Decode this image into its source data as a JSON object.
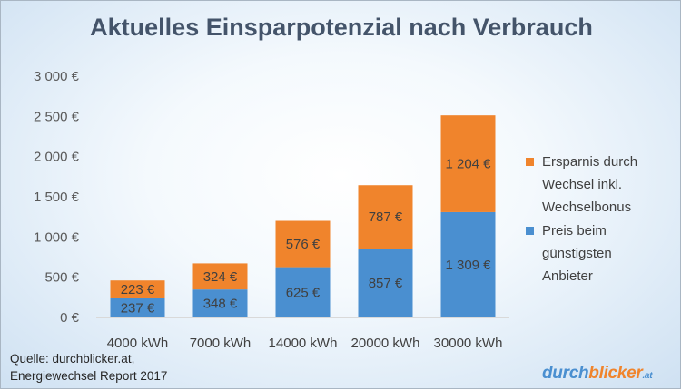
{
  "chart_data": {
    "type": "bar",
    "stacked": true,
    "title": "Aktuelles Einsparpotenzial nach Verbrauch",
    "categories": [
      "4000 kWh",
      "7000 kWh",
      "14000 kWh",
      "20000 kWh",
      "30000 kWh"
    ],
    "series": [
      {
        "name": "Preis beim günstigsten Anbieter",
        "color": "#4a8fd0",
        "values": [
          237,
          348,
          625,
          857,
          1309
        ],
        "labels": [
          "237 €",
          "348 €",
          "625 €",
          "857 €",
          "1 309 €"
        ]
      },
      {
        "name": "Ersparnis durch Wechsel inkl. Wechselbonus",
        "color": "#f0842c",
        "values": [
          223,
          324,
          576,
          787,
          1204
        ],
        "labels": [
          "223 €",
          "324 €",
          "576 €",
          "787 €",
          "1 204 €"
        ]
      }
    ],
    "ylim": [
      0,
      3000
    ],
    "yticks": [
      0,
      500,
      1000,
      1500,
      2000,
      2500,
      3000
    ],
    "ytick_labels": [
      "0 €",
      "500 €",
      "1 000 €",
      "1 500 €",
      "2 000 €",
      "2 500 €",
      "3 000 €"
    ],
    "grid": false,
    "legend_position": "right",
    "legend": [
      {
        "lines": [
          "Ersparnis durch",
          "Wechsel inkl.",
          "Wechselbonus"
        ],
        "color": "#f0842c"
      },
      {
        "lines": [
          "Preis beim",
          "günstigsten",
          "Anbieter"
        ],
        "color": "#4a8fd0"
      }
    ]
  },
  "source": {
    "line1": "Quelle: durchblicker.at,",
    "line2": "Energiewechsel Report 2017"
  },
  "logo": {
    "part1": "durch",
    "part2": "blicker",
    "tld": ".at"
  }
}
